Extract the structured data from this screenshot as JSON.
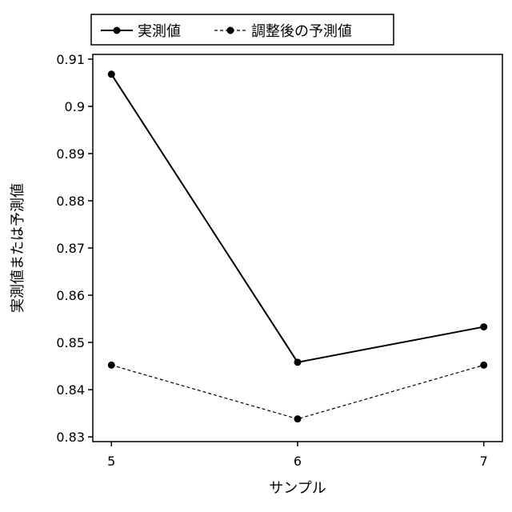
{
  "chart_data": {
    "type": "line",
    "title": "",
    "xlabel": "サンプル",
    "ylabel": "実測値または予測値",
    "x": [
      5,
      6,
      7
    ],
    "xlim": [
      4.9,
      7.1
    ],
    "ylim": [
      0.829,
      0.911
    ],
    "yticks": [
      0.83,
      0.84,
      0.85,
      0.86,
      0.87,
      0.88,
      0.89,
      0.9,
      0.91
    ],
    "ytick_labels": [
      "0.83",
      "0.84",
      "0.85",
      "0.86",
      "0.87",
      "0.88",
      "0.89",
      "0.9",
      "0.91"
    ],
    "xticks": [
      5,
      6,
      7
    ],
    "xtick_labels": [
      "5",
      "6",
      "7"
    ],
    "grid": false,
    "legend_position": "top",
    "series": [
      {
        "name": "実測値",
        "values": [
          0.9068,
          0.8458,
          0.8533
        ],
        "style": "solid",
        "color": "#000000"
      },
      {
        "name": "調整後の予測値",
        "values": [
          0.8452,
          0.8338,
          0.8452
        ],
        "style": "dashed",
        "color": "#000000"
      }
    ]
  }
}
